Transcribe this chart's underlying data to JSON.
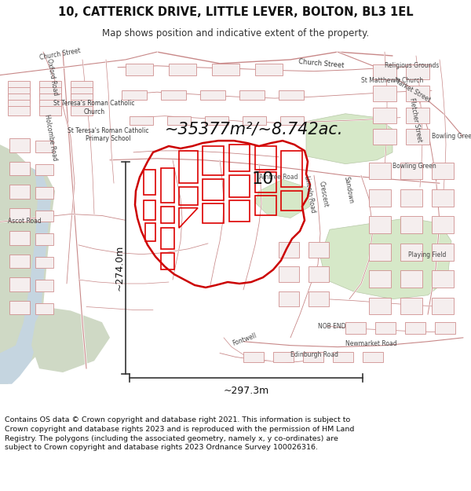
{
  "title_line1": "10, CATTERICK DRIVE, LITTLE LEVER, BOLTON, BL3 1EL",
  "title_line2": "Map shows position and indicative extent of the property.",
  "area_text": "~35377m²/~8.742ac.",
  "label_10": "10",
  "dim_vertical": "~274.0m",
  "dim_horizontal": "~297.3m",
  "footer_text": "Contains OS data © Crown copyright and database right 2021. This information is subject to Crown copyright and database rights 2023 and is reproduced with the permission of HM Land Registry. The polygons (including the associated geometry, namely x, y co-ordinates) are subject to Crown copyright and database rights 2023 Ordnance Survey 100026316.",
  "title_fontsize": 10.5,
  "subtitle_fontsize": 8.5,
  "area_fontsize": 15,
  "label_fontsize": 16,
  "dim_fontsize": 9,
  "footer_fontsize": 6.8,
  "fig_width": 6.0,
  "fig_height": 6.25
}
